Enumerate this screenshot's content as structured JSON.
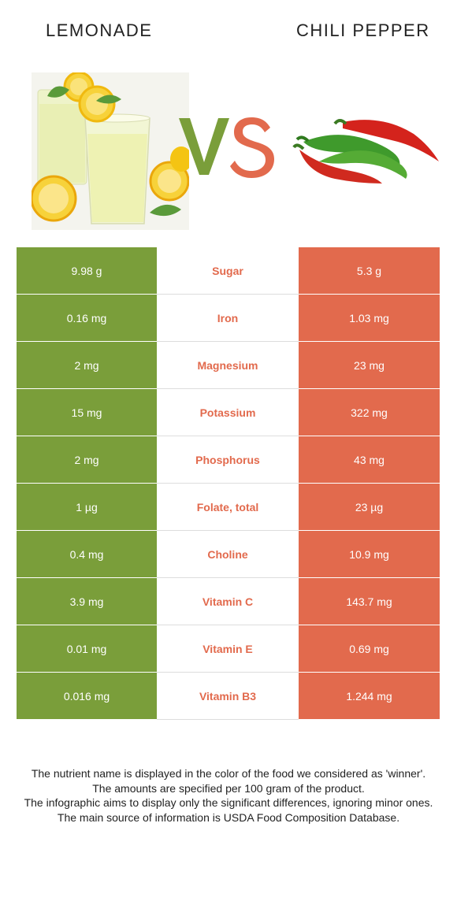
{
  "header": {
    "left_food": "LEMONADE",
    "right_food": "CHILI PEPPER",
    "vs_label": "VS"
  },
  "colors": {
    "winner_left": "#7a9e3a",
    "winner_right": "#e26a4d",
    "vs_v": "#7a9e3a",
    "vs_s": "#e26a4d"
  },
  "images": {
    "left": "lemonade-glasses-photo",
    "right": "red-and-green-chili-peppers-photo"
  },
  "rows": [
    {
      "left": "9.98 g",
      "nutrient": "Sugar",
      "right": "5.3 g"
    },
    {
      "left": "0.16 mg",
      "nutrient": "Iron",
      "right": "1.03 mg"
    },
    {
      "left": "2 mg",
      "nutrient": "Magnesium",
      "right": "23 mg"
    },
    {
      "left": "15 mg",
      "nutrient": "Potassium",
      "right": "322 mg"
    },
    {
      "left": "2 mg",
      "nutrient": "Phosphorus",
      "right": "43 mg"
    },
    {
      "left": "1 µg",
      "nutrient": "Folate, total",
      "right": "23 µg"
    },
    {
      "left": "0.4 mg",
      "nutrient": "Choline",
      "right": "10.9 mg"
    },
    {
      "left": "3.9 mg",
      "nutrient": "Vitamin C",
      "right": "143.7 mg"
    },
    {
      "left": "0.01 mg",
      "nutrient": "Vitamin E",
      "right": "0.69 mg"
    },
    {
      "left": "0.016 mg",
      "nutrient": "Vitamin B3",
      "right": "1.244 mg"
    }
  ],
  "footer": {
    "line1": "The nutrient name is displayed in the color of the food we considered as 'winner'.",
    "line2": "The amounts are specified per 100 gram of the product.",
    "line3": "The infographic aims to display only the significant differences, ignoring minor ones.",
    "line4": "The main source of information is USDA Food Composition Database."
  }
}
